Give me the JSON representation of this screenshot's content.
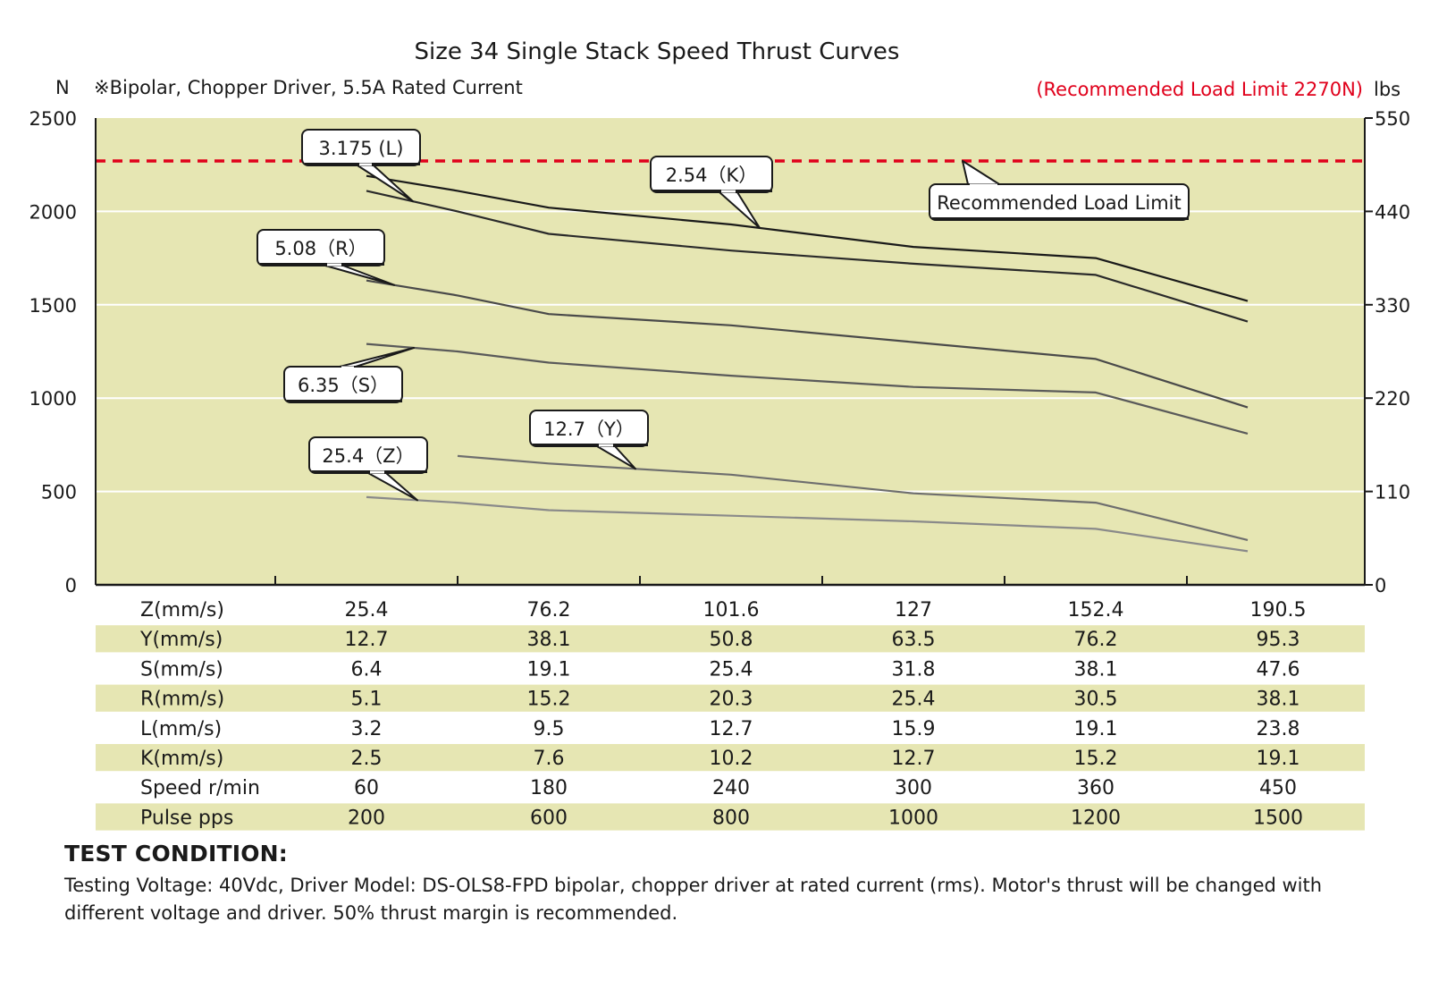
{
  "chart_data": {
    "type": "line",
    "title": "Size 34 Single Stack Speed Thrust Curves",
    "subtitle": "※Bipolar, Chopper Driver, 5.5A Rated Current",
    "recommended_limit_label": "(Recommended Load Limit 2270N)",
    "limit_callout": "Recommended Load Limit",
    "limit_value": 2270,
    "limit_color": "#e0001b",
    "ylabel_left": "N",
    "ylabel_right": "lbs",
    "ylim": [
      0,
      2500
    ],
    "ticks_left": [
      "0",
      "500",
      "1000",
      "1500",
      "2000",
      "2500"
    ],
    "ticks_left_values": [
      0,
      500,
      1000,
      1500,
      2000,
      2500
    ],
    "ticks_right": [
      "0",
      "110",
      "220",
      "330",
      "440",
      "550"
    ],
    "grid": true,
    "plot_bg": "#e6e6b3",
    "x_pulse": [
      200,
      600,
      800,
      1000,
      1200,
      1500
    ],
    "xlim_pulse": [
      0,
      1400
    ],
    "series": [
      {
        "name": "2.54（K）",
        "color": "#1a1a1a",
        "x": [
          200,
          400,
          600,
          800,
          1000,
          1200,
          1450
        ],
        "values": [
          2190,
          2110,
          2020,
          1930,
          1810,
          1750,
          1520
        ]
      },
      {
        "name": "3.175 (L)",
        "color": "#2a2a2a",
        "x": [
          200,
          400,
          600,
          800,
          1000,
          1200,
          1450
        ],
        "values": [
          2110,
          2000,
          1880,
          1790,
          1720,
          1660,
          1410
        ]
      },
      {
        "name": "5.08（R）",
        "color": "#4a4a4a",
        "x": [
          200,
          400,
          600,
          800,
          1000,
          1200,
          1450
        ],
        "values": [
          1630,
          1550,
          1450,
          1390,
          1300,
          1210,
          950
        ]
      },
      {
        "name": "6.35（S）",
        "color": "#5a5a5a",
        "x": [
          200,
          400,
          600,
          800,
          1000,
          1200,
          1450
        ],
        "values": [
          1290,
          1250,
          1190,
          1120,
          1060,
          1030,
          810
        ]
      },
      {
        "name": "12.7（Y）",
        "color": "#6e6e6e",
        "x": [
          400,
          600,
          800,
          1000,
          1200,
          1450
        ],
        "values": [
          690,
          650,
          590,
          490,
          440,
          240
        ]
      },
      {
        "name": "25.4（Z）",
        "color": "#8a8a8a",
        "x": [
          200,
          400,
          600,
          800,
          1000,
          1200,
          1450
        ],
        "values": [
          470,
          440,
          400,
          370,
          340,
          300,
          180
        ]
      }
    ],
    "table": {
      "rows": [
        {
          "label": "Z(mm/s)",
          "values": [
            "25.4",
            "76.2",
            "101.6",
            "127",
            "152.4",
            "190.5"
          ]
        },
        {
          "label": "Y(mm/s)",
          "values": [
            "12.7",
            "38.1",
            "50.8",
            "63.5",
            "76.2",
            "95.3"
          ]
        },
        {
          "label": "S(mm/s)",
          "values": [
            "6.4",
            "19.1",
            "25.4",
            "31.8",
            "38.1",
            "47.6"
          ]
        },
        {
          "label": "R(mm/s)",
          "values": [
            "5.1",
            "15.2",
            "20.3",
            "25.4",
            "30.5",
            "38.1"
          ]
        },
        {
          "label": "L(mm/s)",
          "values": [
            "3.2",
            "9.5",
            "12.7",
            "15.9",
            "19.1",
            "23.8"
          ]
        },
        {
          "label": "K(mm/s)",
          "values": [
            "2.5",
            "7.6",
            "10.2",
            "12.7",
            "15.2",
            "19.1"
          ]
        },
        {
          "label": "Speed r/min",
          "values": [
            "60",
            "180",
            "240",
            "300",
            "360",
            "450"
          ]
        },
        {
          "label": "Pulse  pps",
          "values": [
            "200",
            "600",
            "800",
            "1000",
            "1200",
            "1500"
          ]
        }
      ]
    }
  },
  "test_condition": {
    "title": "TEST CONDITION:",
    "body": "Testing Voltage: 40Vdc, Driver Model: DS-OLS8-FPD bipolar, chopper driver at rated current (rms). Motor's thrust will be changed with different voltage and driver. 50% thrust margin is recommended."
  }
}
